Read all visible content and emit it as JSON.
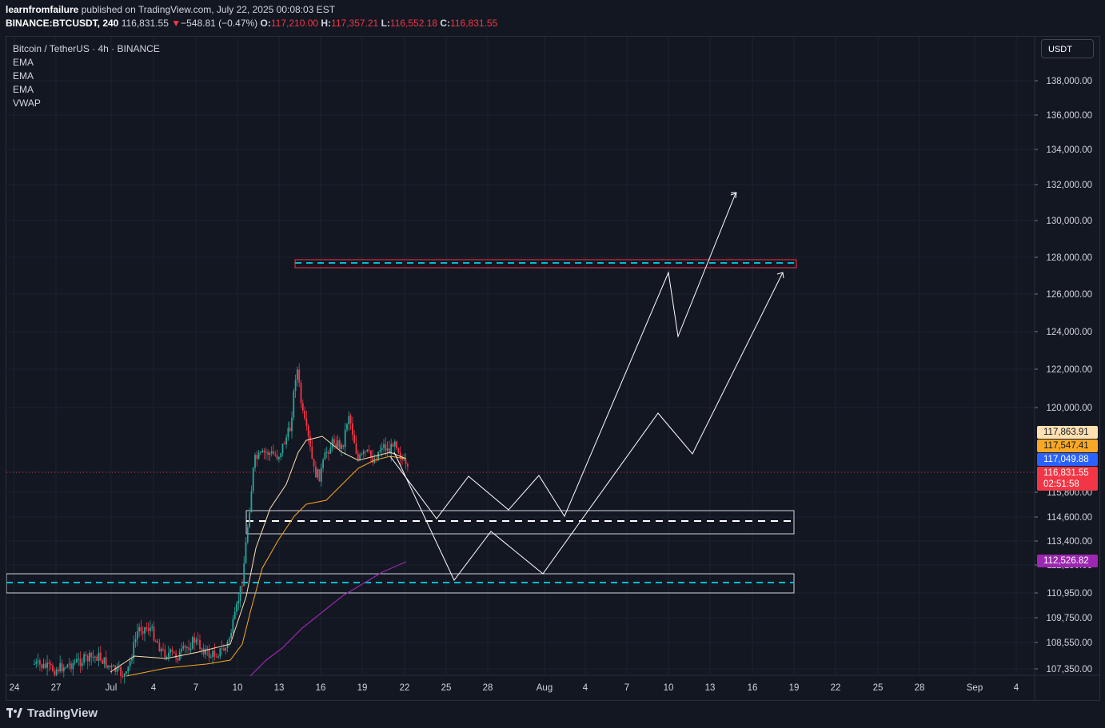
{
  "header": {
    "publisher": "learnfromfailure",
    "published_text": "published on TradingView.com, July 22, 2025 00:08:03 EST",
    "symbol": "BINANCE:BTCUSDT, 240",
    "last": "116,831.55",
    "change_arrow": "▼",
    "change": "−548.81 (−0.47%)",
    "open_label": "O:",
    "open": "117,210.00",
    "high_label": "H:",
    "high": "117,357.21",
    "low_label": "L:",
    "low": "116,552.18",
    "close_label": "C:",
    "close": "116,831.55"
  },
  "legend": {
    "title": "Bitcoin / TetherUS · 4h · BINANCE",
    "indicators": [
      "EMA",
      "EMA",
      "EMA",
      "VWAP"
    ]
  },
  "currency": "USDT",
  "price_axis": {
    "labels": [
      "138,000.00",
      "136,000.00",
      "134,000.00",
      "132,000.00",
      "130,000.00",
      "128,000.00",
      "126,000.00",
      "124,000.00",
      "122,000.00",
      "120,000.00",
      "115,800.00",
      "114,600.00",
      "113,400.00",
      "112,150.00",
      "110,950.00",
      "109,750.00",
      "108,550.00",
      "107,350.00"
    ]
  },
  "price_tags": [
    {
      "text": "117,863.91",
      "bg": "#ffe0b2",
      "fg": "#131722"
    },
    {
      "text": "117,547.41",
      "bg": "#f9a825",
      "fg": "#131722"
    },
    {
      "text": "117,049.88",
      "bg": "#2962ff",
      "fg": "#ffffff"
    },
    {
      "text": "116,831.55",
      "bg": "#f23645",
      "fg": "#ffffff"
    },
    {
      "text": "02:51:58",
      "bg": "#f23645",
      "fg": "#ffffff"
    },
    {
      "text": "112,526.82",
      "bg": "#9c27b0",
      "fg": "#ffffff"
    }
  ],
  "time_axis": {
    "labels": [
      "24",
      "27",
      "Jul",
      "4",
      "7",
      "10",
      "13",
      "16",
      "19",
      "22",
      "25",
      "28",
      "Aug",
      "4",
      "7",
      "10",
      "13",
      "16",
      "19",
      "22",
      "25",
      "28",
      "Sep",
      "4"
    ]
  },
  "colors": {
    "background": "#131722",
    "grid": "#1e222d",
    "up": "#26a69a",
    "down": "#f23645",
    "ema_fast": "#ffe0b2",
    "ema_mid": "#f9a825",
    "vwap": "#9c27b0",
    "level": "#00bcd4"
  },
  "footer": {
    "brand": "TradingView"
  }
}
